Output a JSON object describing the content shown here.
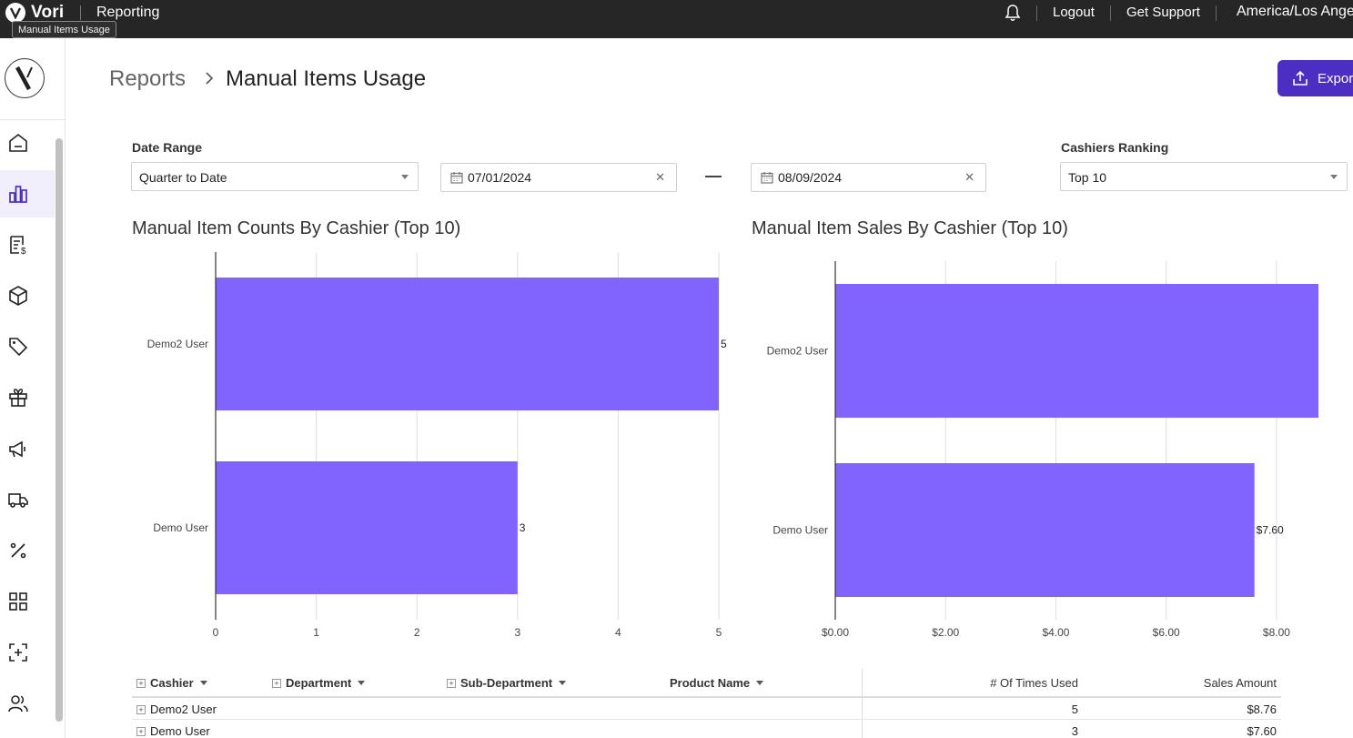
{
  "topbar": {
    "brand": "Vori",
    "app_title": "Reporting",
    "tooltip": "Manual Items Usage",
    "logout": "Logout",
    "support": "Get Support",
    "timezone": "America/Los Angeles"
  },
  "sidebar": {
    "items": [
      {
        "icon": "home-icon"
      },
      {
        "icon": "reports-icon",
        "active": true
      },
      {
        "icon": "invoice-icon"
      },
      {
        "icon": "box-icon"
      },
      {
        "icon": "tag-icon"
      },
      {
        "icon": "gift-icon"
      },
      {
        "icon": "megaphone-icon"
      },
      {
        "icon": "truck-icon"
      },
      {
        "icon": "percent-icon"
      },
      {
        "icon": "grid-icon"
      },
      {
        "icon": "scan-icon"
      },
      {
        "icon": "users-icon"
      }
    ]
  },
  "header": {
    "breadcrumb_root": "Reports",
    "title": "Manual Items Usage",
    "export_label": "Export"
  },
  "filters": {
    "date_range_label": "Date Range",
    "date_range_value": "Quarter to Date",
    "start_date": "07/01/2024",
    "end_date": "08/09/2024",
    "ranking_label": "Cashiers Ranking",
    "ranking_value": "Top 10"
  },
  "charts": {
    "counts_title": "Manual Item Counts By Cashier (Top 10)",
    "sales_title": "Manual Item Sales By Cashier (Top 10)"
  },
  "chart_data": [
    {
      "type": "bar",
      "orientation": "horizontal",
      "title": "Manual Item Counts By Cashier (Top 10)",
      "categories": [
        "Demo2 User",
        "Demo User"
      ],
      "values": [
        5,
        3
      ],
      "data_labels": [
        "5",
        "3"
      ],
      "xlim": [
        0,
        5
      ],
      "x_ticks": [
        "0",
        "1",
        "2",
        "3",
        "4",
        "5"
      ],
      "grid": true,
      "color": "#8163fd"
    },
    {
      "type": "bar",
      "orientation": "horizontal",
      "title": "Manual Item Sales By Cashier (Top 10)",
      "categories": [
        "Demo2 User",
        "Demo User"
      ],
      "values": [
        8.76,
        7.6
      ],
      "data_labels": [
        "",
        "$7.60"
      ],
      "xlim": [
        0,
        8.76
      ],
      "x_ticks": [
        "$0.00",
        "$2.00",
        "$4.00",
        "$6.00",
        "$8.00"
      ],
      "x_tick_values": [
        0,
        2,
        4,
        6,
        8
      ],
      "grid": true,
      "color": "#8163fd"
    }
  ],
  "table": {
    "columns": {
      "cashier": "Cashier",
      "department": "Department",
      "sub_department": "Sub-Department",
      "product_name": "Product Name",
      "times_used": "# Of Times Used",
      "sales_amount": "Sales Amount"
    },
    "rows": [
      {
        "cashier": "Demo2 User",
        "times_used": "5",
        "sales_amount": "$8.76"
      },
      {
        "cashier": "Demo User",
        "times_used": "3",
        "sales_amount": "$7.60"
      }
    ]
  }
}
